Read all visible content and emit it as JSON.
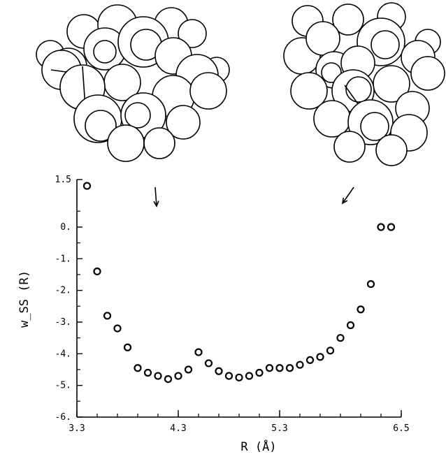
{
  "chart_data": {
    "type": "scatter",
    "title": "",
    "xlabel": "R (Å)",
    "ylabel": "w_SS (R)",
    "xlim": [
      3.3,
      6.5
    ],
    "ylim": [
      -6.0,
      1.5
    ],
    "xticks": [
      "3.3",
      "4.3",
      "5.3",
      "6.5"
    ],
    "yticks": [
      "1.5",
      "0.",
      "-1.",
      "-2.",
      "-3.",
      "-4.",
      "-5.",
      "-6."
    ],
    "grid": false,
    "legend": "none",
    "marker": "open-circle",
    "x": [
      3.4,
      3.5,
      3.6,
      3.7,
      3.8,
      3.9,
      4.0,
      4.1,
      4.2,
      4.3,
      4.4,
      4.5,
      4.6,
      4.7,
      4.8,
      4.9,
      5.0,
      5.1,
      5.2,
      5.3,
      5.4,
      5.5,
      5.6,
      5.7,
      5.8,
      5.9,
      6.0,
      6.1,
      6.2,
      6.3,
      6.4,
      6.5
    ],
    "y": [
      1.3,
      -1.4,
      -2.8,
      -3.2,
      -3.8,
      -4.45,
      -4.6,
      -4.7,
      -4.8,
      -4.7,
      -4.5,
      -3.95,
      -4.3,
      -4.55,
      -4.7,
      -4.75,
      -4.7,
      -4.6,
      -4.45,
      -4.45,
      -4.45,
      -4.35,
      -4.2,
      -4.1,
      -3.9,
      -3.5,
      -3.1,
      -2.6,
      -1.8,
      0.0,
      0.0,
      null
    ],
    "annotations": [
      {
        "type": "arrow",
        "direction": "down",
        "at_x": 4.1
      },
      {
        "type": "arrow",
        "direction": "down-left",
        "at_x": 6.0
      }
    ]
  },
  "illustrations": [
    {
      "name": "molecule-left",
      "description": "space-filling molecular model"
    },
    {
      "name": "molecule-right",
      "description": "space-filling molecular model"
    }
  ]
}
